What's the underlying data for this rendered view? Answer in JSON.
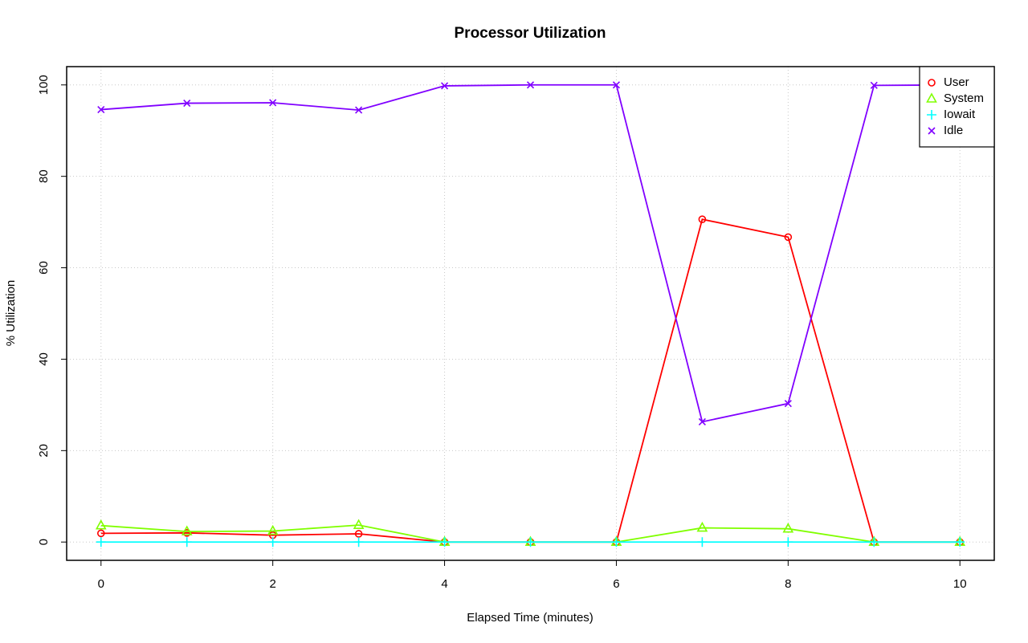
{
  "chart_data": {
    "type": "line",
    "title": "Processor Utilization",
    "x_label": "Elapsed Time (minutes)",
    "y_label": "% Utilization",
    "x": [
      0,
      1,
      2,
      3,
      4,
      5,
      6,
      7,
      8,
      9,
      10
    ],
    "series": [
      {
        "name": "User",
        "color": "#ff0000",
        "marker": "circle",
        "values": [
          1.9,
          2.0,
          1.5,
          1.8,
          0,
          0,
          0,
          70.6,
          66.7,
          0,
          0
        ]
      },
      {
        "name": "System",
        "color": "#80ff00",
        "marker": "triangle",
        "values": [
          3.6,
          2.3,
          2.4,
          3.7,
          0,
          0,
          0,
          3.1,
          2.9,
          0,
          0
        ]
      },
      {
        "name": "Iowait",
        "color": "#00ffff",
        "marker": "plus",
        "values": [
          0,
          0,
          0,
          0,
          0,
          0,
          0,
          0,
          0,
          0,
          0
        ]
      },
      {
        "name": "Idle",
        "color": "#8000ff",
        "marker": "cross",
        "values": [
          94.6,
          96.0,
          96.1,
          94.5,
          99.8,
          100,
          100,
          26.3,
          30.3,
          99.9,
          100
        ]
      }
    ],
    "xlim": [
      -0.4,
      10.4
    ],
    "ylim": [
      -4,
      104
    ],
    "xticks": [
      0,
      2,
      4,
      6,
      8,
      10
    ],
    "yticks": [
      0,
      20,
      40,
      60,
      80,
      100
    ],
    "grid": true,
    "legend_position": "top-right"
  }
}
